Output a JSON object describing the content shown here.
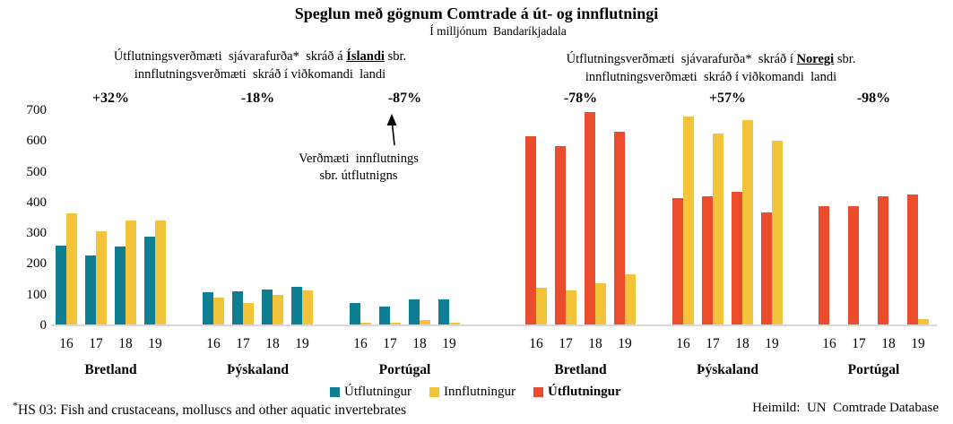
{
  "colors": {
    "export_iceland": "#0F7E93",
    "import": "#F4C33C",
    "export_norway": "#EA4C2C",
    "axis_line": "#D9D9D9"
  },
  "annotations": {
    "left": {
      "line1_pre": "Útflutningsverðmæti  sjávarafurða*  skráð á ",
      "country": "Íslandi",
      "line1_post": " sbr.",
      "line2": "innflutningsverðmæti  skráð í viðkomandi  landi"
    },
    "right": {
      "line1_pre": "Útflutningsverðmæti  sjávarafurða*  skráð í ",
      "country": "Noregi",
      "line1_post": " sbr.",
      "line2": "innflutningsverðmæti  skráð í viðkomandi  landi"
    },
    "arrow_note_line1": "Verðmæti  innflutnings",
    "arrow_note_line2": "sbr. útflutnigns"
  },
  "chart_data": {
    "type": "bar",
    "title": "Speglun með gögnum Comtrade á út- og innflutningi",
    "subtitle": "Í milljónum  Bandaríkjadala",
    "xlabel": "",
    "ylabel": "",
    "ylim": [
      0,
      700
    ],
    "yticks": [
      0,
      100,
      200,
      300,
      400,
      500,
      600,
      700
    ],
    "grid": false,
    "years": [
      "16",
      "17",
      "18",
      "19"
    ],
    "groups": [
      {
        "country": "Bretland",
        "side": "iceland",
        "pct": "+32%",
        "export": [
          260,
          228,
          257,
          290
        ],
        "import": [
          366,
          305,
          342,
          340
        ]
      },
      {
        "country": "Þýskaland",
        "side": "iceland",
        "pct": "-18%",
        "export": [
          108,
          112,
          117,
          125
        ],
        "import": [
          90,
          73,
          100,
          115
        ]
      },
      {
        "country": "Portúgal",
        "side": "iceland",
        "pct": "-87%",
        "export": [
          73,
          60,
          85,
          86
        ],
        "import": [
          8,
          10,
          18,
          8
        ]
      },
      {
        "country": "Bretland",
        "side": "norway",
        "pct": "-78%",
        "export": [
          615,
          582,
          695,
          630
        ],
        "import": [
          123,
          115,
          136,
          167
        ]
      },
      {
        "country": "Þýskaland",
        "side": "norway",
        "pct": "+57%",
        "export": [
          415,
          420,
          434,
          368
        ],
        "import": [
          680,
          625,
          668,
          602
        ]
      },
      {
        "country": "Portúgal",
        "side": "norway",
        "pct": "-98%",
        "export": [
          388,
          389,
          420,
          427
        ],
        "import": [
          2,
          2,
          3,
          20
        ]
      }
    ],
    "legend": [
      {
        "label": "Útflutningur",
        "color": "#0F7E93",
        "bold": false
      },
      {
        "label": "Innflutningur",
        "color": "#F4C33C",
        "bold": false
      },
      {
        "label": "Útflutningur",
        "color": "#EA4C2C",
        "bold": true
      }
    ],
    "legend_position": "bottom"
  },
  "footnote": {
    "asterisk": "*",
    "text": "HS 03: Fish and crustaceans, molluscs and other aquatic invertebrates"
  },
  "source": "Heimild:  UN  Comtrade Database"
}
